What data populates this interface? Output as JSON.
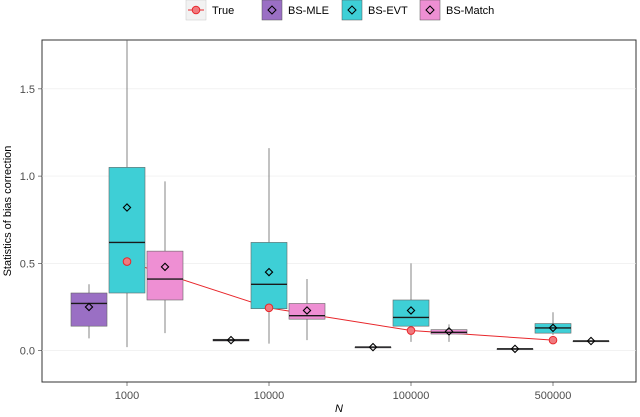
{
  "chart_data": {
    "type": "box",
    "xlabel": "N",
    "ylabel": "Statistics of bias correction",
    "categories": [
      "1000",
      "10000",
      "100000",
      "500000"
    ],
    "ylim": [
      -0.18,
      1.78
    ],
    "yticks": [
      0.0,
      0.5,
      1.0,
      1.5
    ],
    "ytick_labels": [
      "0.0",
      "0.5",
      "1.0",
      "1.5"
    ],
    "grid": true,
    "legend_position": "top",
    "legend": [
      "True",
      "BS-MLE",
      "BS-EVT",
      "BS-Match"
    ],
    "true_line": {
      "name": "True",
      "color": "#e8262b",
      "values": [
        0.51,
        0.245,
        0.115,
        0.06
      ]
    },
    "series": [
      {
        "name": "BS-MLE",
        "color": "#9a6fc4",
        "boxes": [
          {
            "min": 0.07,
            "q1": 0.14,
            "median": 0.27,
            "q3": 0.33,
            "max": 0.38,
            "mean": 0.25
          },
          {
            "min": 0.055,
            "q1": 0.055,
            "median": 0.06,
            "q3": 0.065,
            "max": 0.065,
            "mean": 0.06
          },
          {
            "min": 0.02,
            "q1": 0.02,
            "median": 0.02,
            "q3": 0.02,
            "max": 0.02,
            "mean": 0.02
          },
          {
            "min": 0.01,
            "q1": 0.01,
            "median": 0.01,
            "q3": 0.01,
            "max": 0.01,
            "mean": 0.01
          }
        ]
      },
      {
        "name": "BS-EVT",
        "color": "#3ecfd6",
        "boxes": [
          {
            "min": 0.02,
            "q1": 0.33,
            "median": 0.62,
            "q3": 1.05,
            "max": 1.78,
            "mean": 0.82
          },
          {
            "min": 0.04,
            "q1": 0.24,
            "median": 0.38,
            "q3": 0.62,
            "max": 1.16,
            "mean": 0.45
          },
          {
            "min": 0.05,
            "q1": 0.14,
            "median": 0.19,
            "q3": 0.29,
            "max": 0.5,
            "mean": 0.23
          },
          {
            "min": 0.09,
            "q1": 0.1,
            "median": 0.13,
            "q3": 0.155,
            "max": 0.22,
            "mean": 0.13
          }
        ]
      },
      {
        "name": "BS-Match",
        "color": "#ee8fd3",
        "boxes": [
          {
            "min": 0.1,
            "q1": 0.29,
            "median": 0.41,
            "q3": 0.57,
            "max": 0.97,
            "mean": 0.48
          },
          {
            "min": 0.06,
            "q1": 0.18,
            "median": 0.2,
            "q3": 0.27,
            "max": 0.41,
            "mean": 0.23
          },
          {
            "min": 0.05,
            "q1": 0.095,
            "median": 0.105,
            "q3": 0.12,
            "max": 0.15,
            "mean": 0.11
          },
          {
            "min": 0.055,
            "q1": 0.055,
            "median": 0.055,
            "q3": 0.055,
            "max": 0.055,
            "mean": 0.055
          }
        ]
      }
    ]
  }
}
